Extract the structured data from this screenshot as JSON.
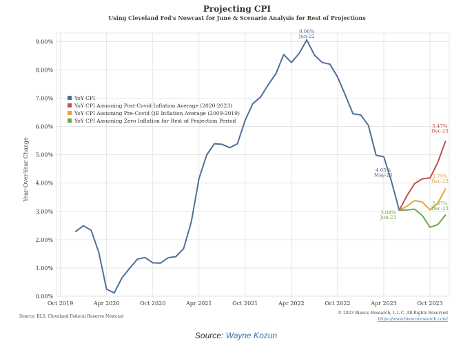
{
  "chart_data": {
    "type": "line",
    "title": "Projecting CPI",
    "subtitle": "Using Cleveland Fed's Nowcast for June & Scenario Analysis for Rest of Projections",
    "ylabel": "Year-Over-Year Change",
    "xlabel": "",
    "ylim": [
      0,
      9.3
    ],
    "yticks": [
      "0.00%",
      "1.00%",
      "2.00%",
      "3.00%",
      "4.00%",
      "5.00%",
      "6.00%",
      "7.00%",
      "8.00%",
      "9.00%"
    ],
    "xticks": [
      {
        "label": "Oct 2019",
        "x": 0
      },
      {
        "label": "Apr 2020",
        "x": 6
      },
      {
        "label": "Oct 2020",
        "x": 12
      },
      {
        "label": "Apr 2021",
        "x": 18
      },
      {
        "label": "Oct 2021",
        "x": 24
      },
      {
        "label": "Apr 2022",
        "x": 30
      },
      {
        "label": "Oct 2022",
        "x": 36
      },
      {
        "label": "Apr 2023",
        "x": 42
      },
      {
        "label": "Oct 2023",
        "x": 48
      }
    ],
    "xlim": [
      -0.5,
      50.5
    ],
    "grid": true,
    "legend_position": "left",
    "series": [
      {
        "name": "YoY CPI",
        "color": "#4e6e96",
        "x": [
          2,
          3,
          4,
          5,
          6,
          7,
          8,
          9,
          10,
          11,
          12,
          13,
          14,
          15,
          16,
          17,
          18,
          19,
          20,
          21,
          22,
          23,
          24,
          25,
          26,
          27,
          28,
          29,
          30,
          31,
          32,
          33,
          34,
          35,
          36,
          37,
          38,
          39,
          40,
          41,
          42,
          43,
          44
        ],
        "values": [
          2.29,
          2.49,
          2.33,
          1.54,
          0.25,
          0.12,
          0.65,
          0.99,
          1.31,
          1.37,
          1.18,
          1.17,
          1.36,
          1.4,
          1.68,
          2.62,
          4.16,
          4.99,
          5.39,
          5.37,
          5.25,
          5.39,
          6.22,
          6.81,
          7.04,
          7.48,
          7.87,
          8.54,
          8.26,
          8.58,
          9.06,
          8.52,
          8.26,
          8.2,
          7.75,
          7.11,
          6.45,
          6.41,
          6.04,
          4.98,
          4.93,
          4.05,
          3.04
        ]
      },
      {
        "name": "YoY CPI Assuming Post-Covid Inflation Average (2020-2023)",
        "color": "#c0504d",
        "x": [
          44,
          45,
          46,
          47,
          48,
          49,
          50
        ],
        "values": [
          3.04,
          3.55,
          3.98,
          4.15,
          4.18,
          4.72,
          5.47
        ]
      },
      {
        "name": "YoY CPI Assuming Pre-Covid QE Inflation Average (2009-2019)",
        "color": "#e8a33d",
        "x": [
          44,
          45,
          46,
          47,
          48,
          49,
          50
        ],
        "values": [
          3.04,
          3.18,
          3.38,
          3.33,
          3.05,
          3.28,
          3.79
        ]
      },
      {
        "name": "YoY CPI Assuming Zero Inflation for Rest of Projection Period",
        "color": "#6aa84f",
        "x": [
          44,
          45,
          46,
          47,
          48,
          49,
          50
        ],
        "values": [
          3.04,
          3.05,
          3.08,
          2.85,
          2.44,
          2.53,
          2.87
        ]
      }
    ],
    "annotations": [
      {
        "text": "9.06%",
        "sub": "Jun-22",
        "x": 32,
        "y": 9.06,
        "color": "#4e6e96"
      },
      {
        "text": "4.05%",
        "sub": "May-23",
        "x": 43,
        "y": 4.05,
        "color": "#4e6e96"
      },
      {
        "text": "3.04%",
        "sub": "Jun-23",
        "x": 44,
        "y": 3.04,
        "color": "#6aa84f"
      },
      {
        "text": "5.47%",
        "sub": "Dec-23",
        "x": 50,
        "y": 5.47,
        "color": "#c0504d"
      },
      {
        "text": "3.79%",
        "sub": "Dec-23",
        "x": 50,
        "y": 3.79,
        "color": "#e8a33d"
      },
      {
        "text": "2.87%",
        "sub": "Dec-23",
        "x": 50,
        "y": 2.87,
        "color": "#6aa84f"
      }
    ],
    "source_note": "Source: BLS, Cleveland Federal Reserve Nowcast",
    "copyright": "© 2023 Bianco Research, L.L.C. All Rights Reserved",
    "website": "https://www.biancoresearch.com/"
  },
  "caption": {
    "prefix": "Source:",
    "author": "Wayne Kozun"
  }
}
